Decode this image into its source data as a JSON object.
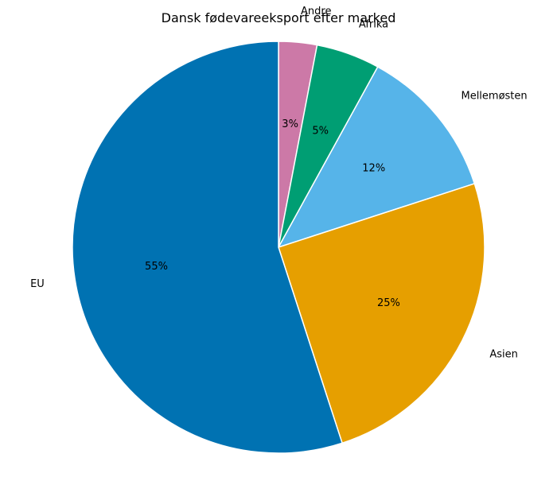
{
  "chart_data": {
    "type": "pie",
    "title": "Dansk fødevareeksport efter marked",
    "slices": [
      {
        "label": "Andre",
        "value": 3,
        "pct_label": "3%",
        "color": "#CC79A7"
      },
      {
        "label": "Afrika",
        "value": 5,
        "pct_label": "5%",
        "color": "#009E73"
      },
      {
        "label": "Mellemøsten",
        "value": 12,
        "pct_label": "12%",
        "color": "#56B4E9"
      },
      {
        "label": "Asien",
        "value": 25,
        "pct_label": "25%",
        "color": "#E69F00"
      },
      {
        "label": "EU",
        "value": 55,
        "pct_label": "55%",
        "color": "#0072B2"
      }
    ],
    "start_angle": "top",
    "direction": "clockwise",
    "edge_color": "#ffffff"
  }
}
